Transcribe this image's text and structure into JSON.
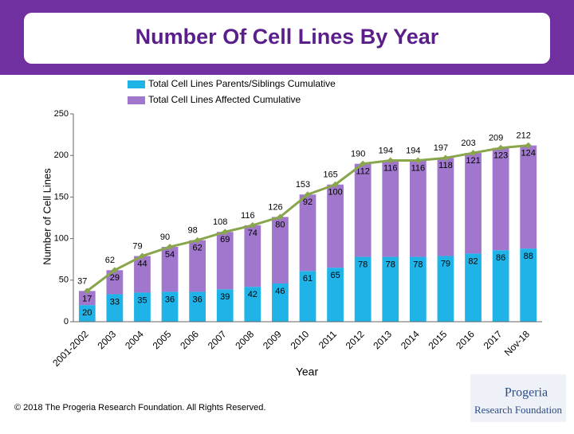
{
  "chart_data": {
    "type": "stacked-bar-line",
    "title": "Number Of Cell Lines By Year",
    "x_label": "Year",
    "y_label": "Number of Cell Lines",
    "categories": [
      "2001-2002",
      "2003",
      "2004",
      "2005",
      "2006",
      "2007",
      "2008",
      "2009",
      "2010",
      "2011",
      "2012",
      "2013",
      "2014",
      "2015",
      "2016",
      "2017",
      "Nov-18"
    ],
    "series": [
      {
        "name": "Total Cell Lines Parents/Siblings Cumulative",
        "color": "#1fb3e8",
        "values": [
          20,
          33,
          35,
          36,
          36,
          39,
          42,
          46,
          61,
          65,
          78,
          78,
          78,
          79,
          82,
          86,
          88
        ]
      },
      {
        "name": "Total Cell Lines Affected Cumulative",
        "color": "#a077cc",
        "values": [
          17,
          29,
          44,
          54,
          62,
          69,
          74,
          80,
          92,
          100,
          112,
          116,
          116,
          118,
          121,
          123,
          124
        ]
      }
    ],
    "line": {
      "color": "#8aa64c",
      "values": [
        37,
        62,
        79,
        90,
        98,
        108,
        116,
        126,
        153,
        165,
        190,
        194,
        194,
        197,
        203,
        209,
        212
      ]
    },
    "ylim": [
      0,
      250
    ],
    "yticks": [
      0,
      50,
      100,
      150,
      200,
      250
    ],
    "footer": "© 2018 The Progeria Research Foundation. All Rights Reserved.",
    "logo": [
      "Progeria",
      "Research Foundation"
    ]
  }
}
